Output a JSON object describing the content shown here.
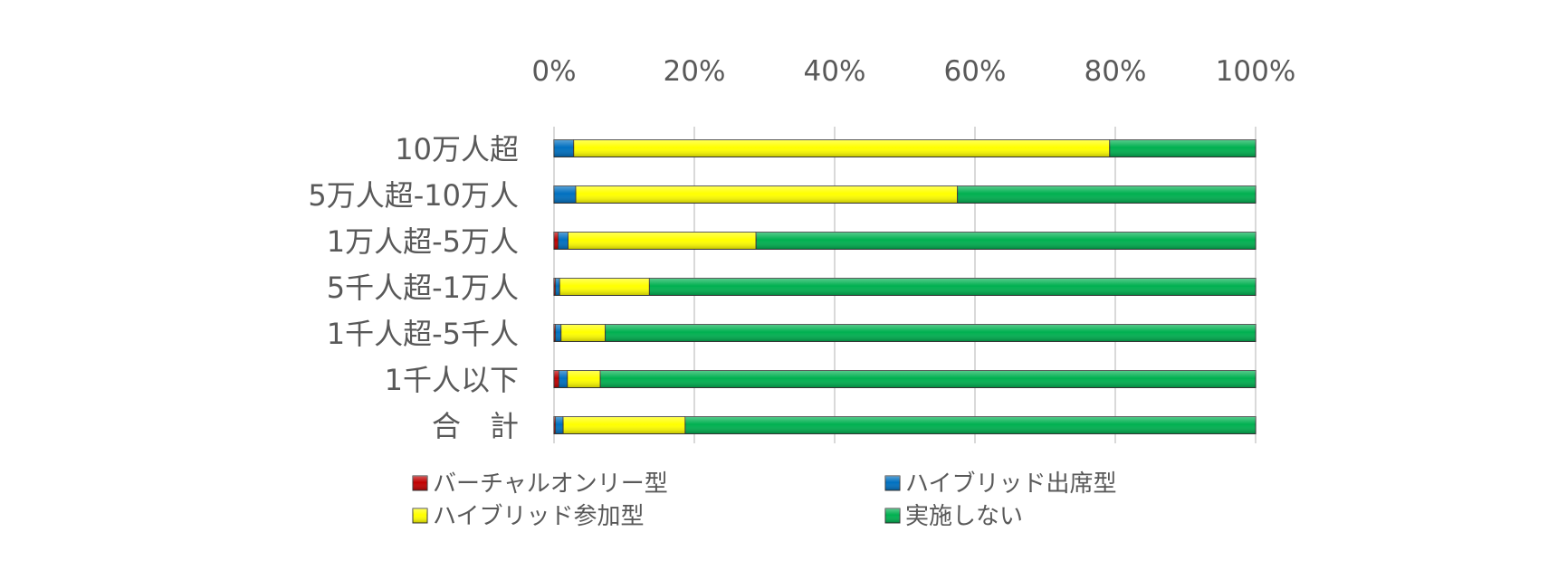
{
  "chart_data": {
    "type": "bar",
    "orientation": "horizontal",
    "stacked": "percent",
    "x_axis_position": "top",
    "xlim": [
      0,
      100
    ],
    "x_ticks": [
      "0%",
      "20%",
      "40%",
      "60%",
      "80%",
      "100%"
    ],
    "x_tick_values": [
      0,
      20,
      40,
      60,
      80,
      100
    ],
    "grid": true,
    "legend_position": "bottom",
    "categories": [
      "10万人超",
      "5万人超-10万人",
      "1万人超-5万人",
      "5千人超-1万人",
      "1千人超-5千人",
      "1千人以下",
      "合　計"
    ],
    "series": [
      {
        "name": "バーチャルオンリー型",
        "color": "#c00000",
        "values": [
          0,
          0,
          0.6,
          0.2,
          0.2,
          0.7,
          0.2
        ]
      },
      {
        "name": "ハイブリッド出席型",
        "color": "#0070c0",
        "values": [
          2.8,
          3.1,
          1.4,
          0.6,
          0.8,
          1.2,
          1.1
        ]
      },
      {
        "name": "ハイブリッド参加型",
        "color": "#ffff00",
        "values": [
          76.4,
          54.4,
          26.8,
          12.8,
          6.3,
          4.7,
          17.4
        ]
      },
      {
        "name": "実施しない",
        "color": "#00b050",
        "values": [
          20.8,
          42.5,
          71.2,
          86.4,
          92.7,
          93.4,
          81.3
        ]
      }
    ]
  }
}
